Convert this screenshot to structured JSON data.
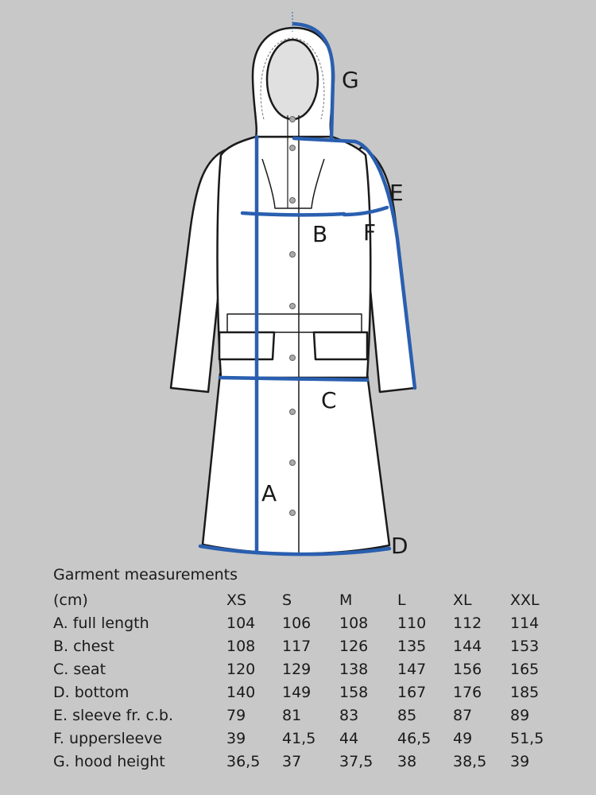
{
  "diagram": {
    "labels": {
      "A": "A",
      "B": "B",
      "C": "C",
      "D": "D",
      "E": "E",
      "F": "F",
      "G": "G"
    },
    "colors": {
      "background": "#c8c8c8",
      "measure_line": "#2a5fb0",
      "garment": "#ffffff",
      "outline": "#1a1a1a"
    }
  },
  "table": {
    "title": "Garment measurements",
    "unit_header": "(cm)",
    "sizes": [
      "XS",
      "S",
      "M",
      "L",
      "XL",
      "XXL"
    ],
    "rows": [
      {
        "label": "A. full length",
        "values": [
          "104",
          "106",
          "108",
          "110",
          "112",
          "114"
        ]
      },
      {
        "label": "B. chest",
        "values": [
          "108",
          "117",
          "126",
          "135",
          "144",
          "153"
        ]
      },
      {
        "label": "C. seat",
        "values": [
          "120",
          "129",
          "138",
          "147",
          "156",
          "165"
        ]
      },
      {
        "label": "D. bottom",
        "values": [
          "140",
          "149",
          "158",
          "167",
          "176",
          "185"
        ]
      },
      {
        "label": "E. sleeve fr. c.b.",
        "values": [
          "79",
          "81",
          "83",
          "85",
          "87",
          "89"
        ]
      },
      {
        "label": "F. uppersleeve",
        "values": [
          "39",
          "41,5",
          "44",
          "46,5",
          "49",
          "51,5"
        ]
      },
      {
        "label": "G. hood height",
        "values": [
          "36,5",
          "37",
          "37,5",
          "38",
          "38,5",
          "39"
        ]
      }
    ]
  }
}
